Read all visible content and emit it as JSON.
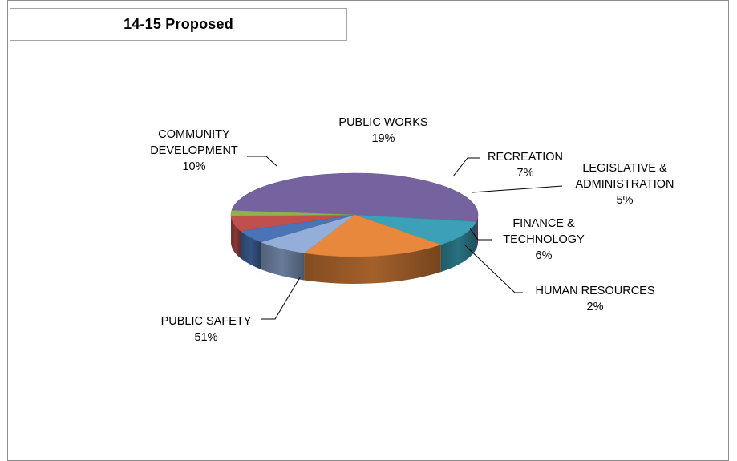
{
  "chart_data": {
    "type": "pie",
    "title": "14-15 Proposed",
    "style": "3d",
    "categories": [
      "PUBLIC SAFETY",
      "COMMUNITY DEVELOPMENT",
      "PUBLIC WORKS",
      "RECREATION",
      "LEGISLATIVE & ADMINISTRATION",
      "FINANCE & TECHNOLOGY",
      "HUMAN RESOURCES"
    ],
    "values": [
      51,
      10,
      19,
      7,
      5,
      6,
      2
    ],
    "value_labels": [
      "51%",
      "10%",
      "19%",
      "7%",
      "5%",
      "6%",
      "2%"
    ],
    "label_lines": [
      [
        "PUBLIC SAFETY"
      ],
      [
        "COMMUNITY",
        "DEVELOPMENT"
      ],
      [
        "PUBLIC WORKS"
      ],
      [
        "RECREATION"
      ],
      [
        "LEGISLATIVE &",
        "ADMINISTRATION"
      ],
      [
        "FINANCE &",
        "TECHNOLOGY"
      ],
      [
        "HUMAN RESOURCES"
      ]
    ],
    "colors": [
      "#7563a0",
      "#3ba0b8",
      "#e8883c",
      "#93aed9",
      "#4a74b6",
      "#c0504d",
      "#8fb24b"
    ]
  }
}
